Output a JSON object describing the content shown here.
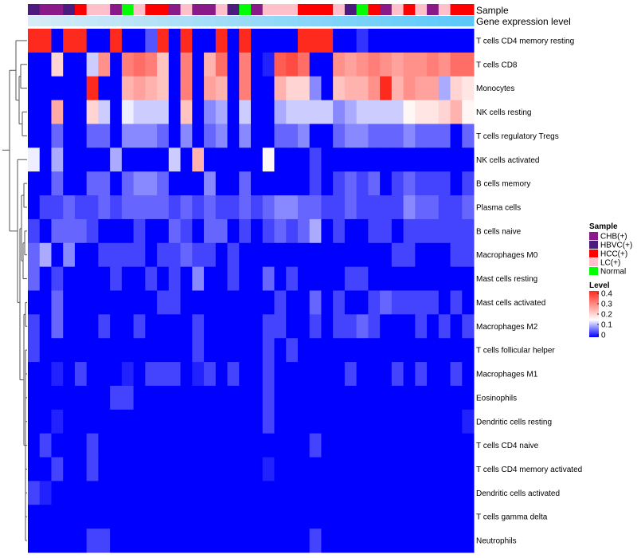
{
  "chart_data": {
    "type": "heatmap",
    "annotation_labels": {
      "sample": "Sample",
      "gene_expression": "Gene expression level"
    },
    "rows": [
      "T cells CD4 memory resting",
      "T cells CD8",
      "Monocytes",
      "NK cells resting",
      "T cells regulatory  Tregs",
      "NK cells activated",
      "B cells memory",
      "Plasma cells",
      "B cells naive",
      "Macrophages M0",
      "Mast cells resting",
      "Mast cells activated",
      "Macrophages M2",
      "T cells follicular helper",
      "Macrophages M1",
      "Eosinophils",
      "Dendritic cells resting",
      "T cells CD4 naive",
      "T cells CD4 memory activated",
      "Dendritic cells activated",
      "T cells gamma delta",
      "Neutrophils"
    ],
    "sample_groups": [
      "CHB(+)",
      "HBVC(+)",
      "HCC(+)",
      "LC(+)",
      "Normal"
    ],
    "sample_colors": {
      "CHB(+)": "#8B1A89",
      "HBVC(+)": "#4B1C7D",
      "HCC(+)": "#FF0000",
      "LC(+)": "#FFC0CB",
      "Normal": "#00FF00"
    },
    "column_samples": [
      "HBVC(+)",
      "CHB(+)",
      "CHB(+)",
      "HBVC(+)",
      "HCC(+)",
      "LC(+)",
      "LC(+)",
      "CHB(+)",
      "Normal",
      "LC(+)",
      "HCC(+)",
      "HCC(+)",
      "CHB(+)",
      "LC(+)",
      "CHB(+)",
      "CHB(+)",
      "LC(+)",
      "HBVC(+)",
      "Normal",
      "CHB(+)",
      "LC(+)",
      "LC(+)",
      "LC(+)",
      "HCC(+)",
      "HCC(+)",
      "HCC(+)",
      "LC(+)",
      "HBVC(+)",
      "Normal",
      "HCC(+)",
      "CHB(+)",
      "LC(+)",
      "HCC(+)",
      "LC(+)",
      "CHB(+)",
      "LC(+)",
      "HCC(+)",
      "HCC(+)"
    ],
    "gene_expression_bar": {
      "colors": [
        "#D6ECF7",
        "#5BC8F8"
      ]
    },
    "values": [
      [
        0.4,
        0.4,
        0.0,
        0.4,
        0.4,
        0.0,
        0.0,
        0.4,
        0.0,
        0.0,
        0.05,
        0.4,
        0.0,
        0.4,
        0.0,
        0.0,
        0.4,
        0.0,
        0.4,
        0.0,
        0.0,
        0.0,
        0.0,
        0.4,
        0.4,
        0.4,
        0.0,
        0.0,
        0.03,
        0.0,
        0.0,
        0.0,
        0.0,
        0.0,
        0.0,
        0.0,
        0.0,
        0.0
      ],
      [
        0.0,
        0.0,
        0.2,
        0.0,
        0.0,
        0.12,
        0.28,
        0.0,
        0.3,
        0.32,
        0.3,
        0.22,
        0.0,
        0.3,
        0.0,
        0.24,
        0.32,
        0.0,
        0.3,
        0.0,
        0.02,
        0.34,
        0.36,
        0.32,
        0.0,
        0.0,
        0.28,
        0.26,
        0.28,
        0.3,
        0.28,
        0.26,
        0.28,
        0.28,
        0.3,
        0.28,
        0.32,
        0.32
      ],
      [
        0.0,
        0.0,
        0.0,
        0.0,
        0.0,
        0.4,
        0.0,
        0.0,
        0.24,
        0.26,
        0.24,
        0.22,
        0.0,
        0.3,
        0.0,
        0.26,
        0.24,
        0.0,
        0.3,
        0.0,
        0.0,
        0.24,
        0.2,
        0.2,
        0.08,
        0.0,
        0.22,
        0.24,
        0.24,
        0.28,
        0.4,
        0.24,
        0.28,
        0.26,
        0.26,
        0.1,
        0.2,
        0.18
      ],
      [
        0.0,
        0.0,
        0.25,
        0.0,
        0.0,
        0.2,
        0.12,
        0.0,
        0.14,
        0.12,
        0.12,
        0.12,
        0.0,
        0.22,
        0.0,
        0.08,
        0.1,
        0.0,
        0.12,
        0.0,
        0.0,
        0.1,
        0.12,
        0.12,
        0.12,
        0.12,
        0.08,
        0.1,
        0.12,
        0.12,
        0.12,
        0.12,
        0.16,
        0.18,
        0.18,
        0.2,
        0.24,
        0.16
      ],
      [
        0.0,
        0.0,
        0.06,
        0.0,
        0.0,
        0.06,
        0.06,
        0.0,
        0.08,
        0.08,
        0.08,
        0.06,
        0.0,
        0.08,
        0.0,
        0.06,
        0.08,
        0.0,
        0.08,
        0.0,
        0.0,
        0.06,
        0.06,
        0.08,
        0.0,
        0.0,
        0.06,
        0.08,
        0.08,
        0.06,
        0.06,
        0.06,
        0.08,
        0.06,
        0.06,
        0.06,
        0.0,
        0.06
      ],
      [
        0.14,
        0.0,
        0.1,
        0.0,
        0.0,
        0.0,
        0.0,
        0.1,
        0.0,
        0.0,
        0.0,
        0.0,
        0.12,
        0.0,
        0.24,
        0.0,
        0.0,
        0.0,
        0.0,
        0.0,
        0.16,
        0.0,
        0.0,
        0.0,
        0.04,
        0.0,
        0.0,
        0.0,
        0.0,
        0.0,
        0.0,
        0.0,
        0.0,
        0.0,
        0.0,
        0.0,
        0.0,
        0.0
      ],
      [
        0.0,
        0.0,
        0.06,
        0.0,
        0.0,
        0.06,
        0.06,
        0.0,
        0.06,
        0.08,
        0.08,
        0.06,
        0.0,
        0.0,
        0.0,
        0.08,
        0.0,
        0.0,
        0.06,
        0.0,
        0.0,
        0.0,
        0.0,
        0.0,
        0.04,
        0.0,
        0.04,
        0.06,
        0.04,
        0.06,
        0.0,
        0.04,
        0.06,
        0.04,
        0.04,
        0.04,
        0.0,
        0.04
      ],
      [
        0.0,
        0.04,
        0.04,
        0.06,
        0.04,
        0.04,
        0.06,
        0.04,
        0.06,
        0.06,
        0.06,
        0.06,
        0.04,
        0.06,
        0.04,
        0.06,
        0.04,
        0.04,
        0.06,
        0.04,
        0.06,
        0.08,
        0.08,
        0.06,
        0.06,
        0.04,
        0.04,
        0.06,
        0.04,
        0.04,
        0.04,
        0.04,
        0.08,
        0.06,
        0.06,
        0.04,
        0.04,
        0.06
      ],
      [
        0.04,
        0.0,
        0.06,
        0.06,
        0.06,
        0.04,
        0.0,
        0.0,
        0.0,
        0.04,
        0.0,
        0.0,
        0.06,
        0.04,
        0.0,
        0.06,
        0.06,
        0.0,
        0.04,
        0.0,
        0.04,
        0.06,
        0.04,
        0.06,
        0.1,
        0.0,
        0.04,
        0.0,
        0.0,
        0.04,
        0.04,
        0.0,
        0.04,
        0.04,
        0.04,
        0.04,
        0.04,
        0.04
      ],
      [
        0.06,
        0.1,
        0.0,
        0.08,
        0.0,
        0.0,
        0.04,
        0.04,
        0.04,
        0.04,
        0.0,
        0.04,
        0.04,
        0.06,
        0.04,
        0.04,
        0.0,
        0.04,
        0.0,
        0.0,
        0.0,
        0.0,
        0.0,
        0.0,
        0.0,
        0.0,
        0.0,
        0.0,
        0.0,
        0.0,
        0.0,
        0.04,
        0.04,
        0.0,
        0.0,
        0.0,
        0.04,
        0.04
      ],
      [
        0.06,
        0.0,
        0.04,
        0.0,
        0.0,
        0.0,
        0.0,
        0.04,
        0.0,
        0.0,
        0.04,
        0.0,
        0.04,
        0.0,
        0.08,
        0.0,
        0.0,
        0.04,
        0.0,
        0.0,
        0.06,
        0.0,
        0.04,
        0.0,
        0.0,
        0.0,
        0.0,
        0.04,
        0.04,
        0.0,
        0.0,
        0.0,
        0.0,
        0.0,
        0.0,
        0.0,
        0.0,
        0.0
      ],
      [
        0.0,
        0.0,
        0.06,
        0.0,
        0.0,
        0.0,
        0.0,
        0.0,
        0.0,
        0.0,
        0.0,
        0.04,
        0.04,
        0.0,
        0.0,
        0.0,
        0.0,
        0.0,
        0.0,
        0.0,
        0.0,
        0.04,
        0.0,
        0.0,
        0.06,
        0.0,
        0.04,
        0.0,
        0.0,
        0.04,
        0.06,
        0.04,
        0.04,
        0.04,
        0.04,
        0.0,
        0.04,
        0.0
      ],
      [
        0.04,
        0.0,
        0.06,
        0.0,
        0.0,
        0.0,
        0.04,
        0.0,
        0.0,
        0.04,
        0.0,
        0.0,
        0.0,
        0.0,
        0.04,
        0.0,
        0.0,
        0.0,
        0.0,
        0.0,
        0.04,
        0.04,
        0.0,
        0.0,
        0.04,
        0.0,
        0.04,
        0.04,
        0.06,
        0.04,
        0.0,
        0.0,
        0.0,
        0.04,
        0.0,
        0.04,
        0.0,
        0.04
      ],
      [
        0.04,
        0.0,
        0.0,
        0.0,
        0.0,
        0.0,
        0.0,
        0.0,
        0.0,
        0.0,
        0.0,
        0.0,
        0.0,
        0.0,
        0.04,
        0.0,
        0.0,
        0.0,
        0.0,
        0.0,
        0.04,
        0.0,
        0.04,
        0.0,
        0.0,
        0.0,
        0.0,
        0.0,
        0.0,
        0.0,
        0.0,
        0.0,
        0.0,
        0.0,
        0.0,
        0.0,
        0.0,
        0.0
      ],
      [
        0.0,
        0.0,
        0.02,
        0.0,
        0.04,
        0.0,
        0.0,
        0.0,
        0.02,
        0.0,
        0.04,
        0.04,
        0.04,
        0.0,
        0.02,
        0.04,
        0.0,
        0.04,
        0.0,
        0.0,
        0.04,
        0.0,
        0.0,
        0.0,
        0.0,
        0.0,
        0.0,
        0.04,
        0.0,
        0.0,
        0.0,
        0.04,
        0.0,
        0.04,
        0.0,
        0.0,
        0.04,
        0.0
      ],
      [
        0.0,
        0.0,
        0.0,
        0.0,
        0.0,
        0.0,
        0.0,
        0.04,
        0.04,
        0.0,
        0.0,
        0.0,
        0.0,
        0.0,
        0.0,
        0.0,
        0.0,
        0.0,
        0.0,
        0.0,
        0.04,
        0.0,
        0.0,
        0.0,
        0.0,
        0.0,
        0.0,
        0.0,
        0.0,
        0.0,
        0.0,
        0.0,
        0.0,
        0.0,
        0.0,
        0.0,
        0.0,
        0.0
      ],
      [
        0.0,
        0.0,
        0.02,
        0.0,
        0.0,
        0.0,
        0.0,
        0.0,
        0.0,
        0.0,
        0.0,
        0.0,
        0.0,
        0.0,
        0.0,
        0.0,
        0.0,
        0.0,
        0.0,
        0.0,
        0.04,
        0.0,
        0.0,
        0.0,
        0.0,
        0.0,
        0.0,
        0.0,
        0.0,
        0.0,
        0.0,
        0.0,
        0.0,
        0.0,
        0.0,
        0.0,
        0.0,
        0.02
      ],
      [
        0.0,
        0.04,
        0.0,
        0.0,
        0.0,
        0.04,
        0.0,
        0.0,
        0.0,
        0.0,
        0.0,
        0.0,
        0.0,
        0.0,
        0.0,
        0.0,
        0.0,
        0.0,
        0.0,
        0.0,
        0.0,
        0.0,
        0.0,
        0.0,
        0.04,
        0.0,
        0.0,
        0.0,
        0.0,
        0.0,
        0.0,
        0.0,
        0.0,
        0.0,
        0.0,
        0.0,
        0.0,
        0.0
      ],
      [
        0.0,
        0.0,
        0.04,
        0.0,
        0.0,
        0.04,
        0.0,
        0.0,
        0.0,
        0.0,
        0.0,
        0.0,
        0.0,
        0.0,
        0.0,
        0.0,
        0.0,
        0.0,
        0.0,
        0.0,
        0.02,
        0.0,
        0.0,
        0.0,
        0.0,
        0.0,
        0.0,
        0.0,
        0.0,
        0.0,
        0.0,
        0.0,
        0.0,
        0.0,
        0.0,
        0.0,
        0.0,
        0.0
      ],
      [
        0.04,
        0.02,
        0.0,
        0.0,
        0.0,
        0.0,
        0.0,
        0.0,
        0.0,
        0.0,
        0.0,
        0.0,
        0.0,
        0.0,
        0.0,
        0.0,
        0.0,
        0.0,
        0.0,
        0.0,
        0.0,
        0.0,
        0.0,
        0.0,
        0.0,
        0.0,
        0.0,
        0.0,
        0.0,
        0.0,
        0.0,
        0.0,
        0.0,
        0.0,
        0.0,
        0.0,
        0.0,
        0.0
      ],
      [
        0.0,
        0.0,
        0.0,
        0.0,
        0.0,
        0.0,
        0.0,
        0.0,
        0.0,
        0.0,
        0.0,
        0.0,
        0.0,
        0.0,
        0.0,
        0.0,
        0.0,
        0.0,
        0.0,
        0.0,
        0.0,
        0.0,
        0.0,
        0.0,
        0.0,
        0.0,
        0.0,
        0.0,
        0.0,
        0.0,
        0.0,
        0.0,
        0.0,
        0.0,
        0.0,
        0.0,
        0.0,
        0.0
      ],
      [
        0.0,
        0.0,
        0.0,
        0.0,
        0.0,
        0.04,
        0.04,
        0.0,
        0.0,
        0.0,
        0.0,
        0.0,
        0.0,
        0.0,
        0.0,
        0.0,
        0.0,
        0.0,
        0.0,
        0.0,
        0.0,
        0.0,
        0.0,
        0.0,
        0.04,
        0.0,
        0.0,
        0.0,
        0.0,
        0.0,
        0.0,
        0.0,
        0.0,
        0.0,
        0.0,
        0.0,
        0.0,
        0.0
      ]
    ],
    "color_scale": {
      "min": 0,
      "max": 0.4,
      "stops": [
        {
          "value": 0.0,
          "color": "#0000FF"
        },
        {
          "value": 0.15,
          "color": "#FFFFFF"
        },
        {
          "value": 0.4,
          "color": "#FF2A1E"
        }
      ]
    },
    "legend": {
      "sample_title": "Sample",
      "level_title": "Level",
      "level_ticks": [
        "0.4",
        "0.3",
        "0.2",
        "0.1",
        "0"
      ],
      "level_tick_values": [
        0.4,
        0.3,
        0.2,
        0.1,
        0.0
      ]
    }
  }
}
